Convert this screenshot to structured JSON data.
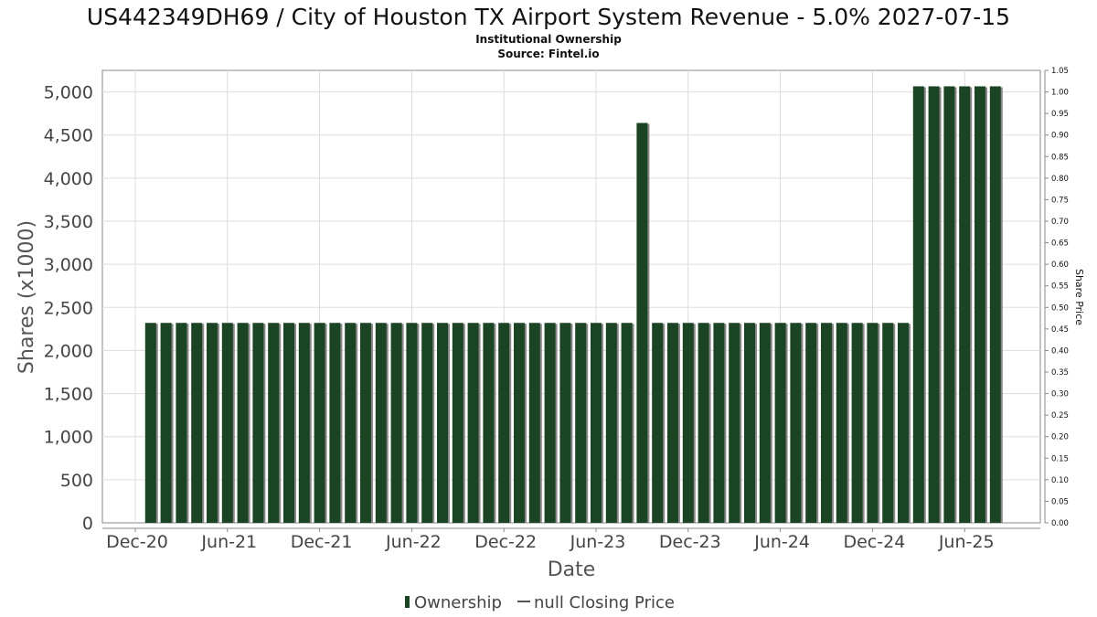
{
  "chart_data": {
    "type": "bar",
    "title": "US442349DH69 / City of Houston TX Airport System Revenue - 5.0% 2027-07-15",
    "subtitle": "Institutional Ownership",
    "source": "Source: Fintel.io",
    "xlabel": "Date",
    "ylabel": "Shares (x1000)",
    "y2label": "Share Price",
    "ylim": [
      0,
      5250
    ],
    "y2lim": [
      0,
      1.05
    ],
    "yticks": [
      "0",
      "500",
      "1,000",
      "1,500",
      "2,000",
      "2,500",
      "3,000",
      "3,500",
      "4,000",
      "4,500",
      "5,000"
    ],
    "y2ticks": [
      "0.00",
      "0.05",
      "0.10",
      "0.15",
      "0.20",
      "0.25",
      "0.30",
      "0.35",
      "0.40",
      "0.45",
      "0.50",
      "0.55",
      "0.60",
      "0.65",
      "0.70",
      "0.75",
      "0.80",
      "0.85",
      "0.90",
      "0.95",
      "1.00",
      "1.05"
    ],
    "xticks": [
      "Dec-20",
      "Jun-21",
      "Dec-21",
      "Jun-22",
      "Dec-22",
      "Jun-23",
      "Dec-23",
      "Jun-24",
      "Dec-24",
      "Jun-25"
    ],
    "start_month": "Jan-21",
    "series": [
      {
        "name": "Ownership",
        "color": "#1a4423",
        "values": [
          2320,
          2320,
          2320,
          2320,
          2320,
          2320,
          2320,
          2320,
          2320,
          2320,
          2320,
          2320,
          2320,
          2320,
          2320,
          2320,
          2320,
          2320,
          2320,
          2320,
          2320,
          2320,
          2320,
          2320,
          2320,
          2320,
          2320,
          2320,
          2320,
          2320,
          2320,
          2320,
          4640,
          2320,
          2320,
          2320,
          2320,
          2320,
          2320,
          2320,
          2320,
          2320,
          2320,
          2320,
          2320,
          2320,
          2320,
          2320,
          2320,
          2320,
          5065,
          5065,
          5065,
          5065,
          5065,
          5065
        ]
      },
      {
        "name": "null Closing Price",
        "color": "#555555",
        "values": []
      }
    ],
    "legend": {
      "position": "bottom",
      "items": [
        "Ownership",
        "null Closing Price"
      ]
    },
    "grid": true
  }
}
